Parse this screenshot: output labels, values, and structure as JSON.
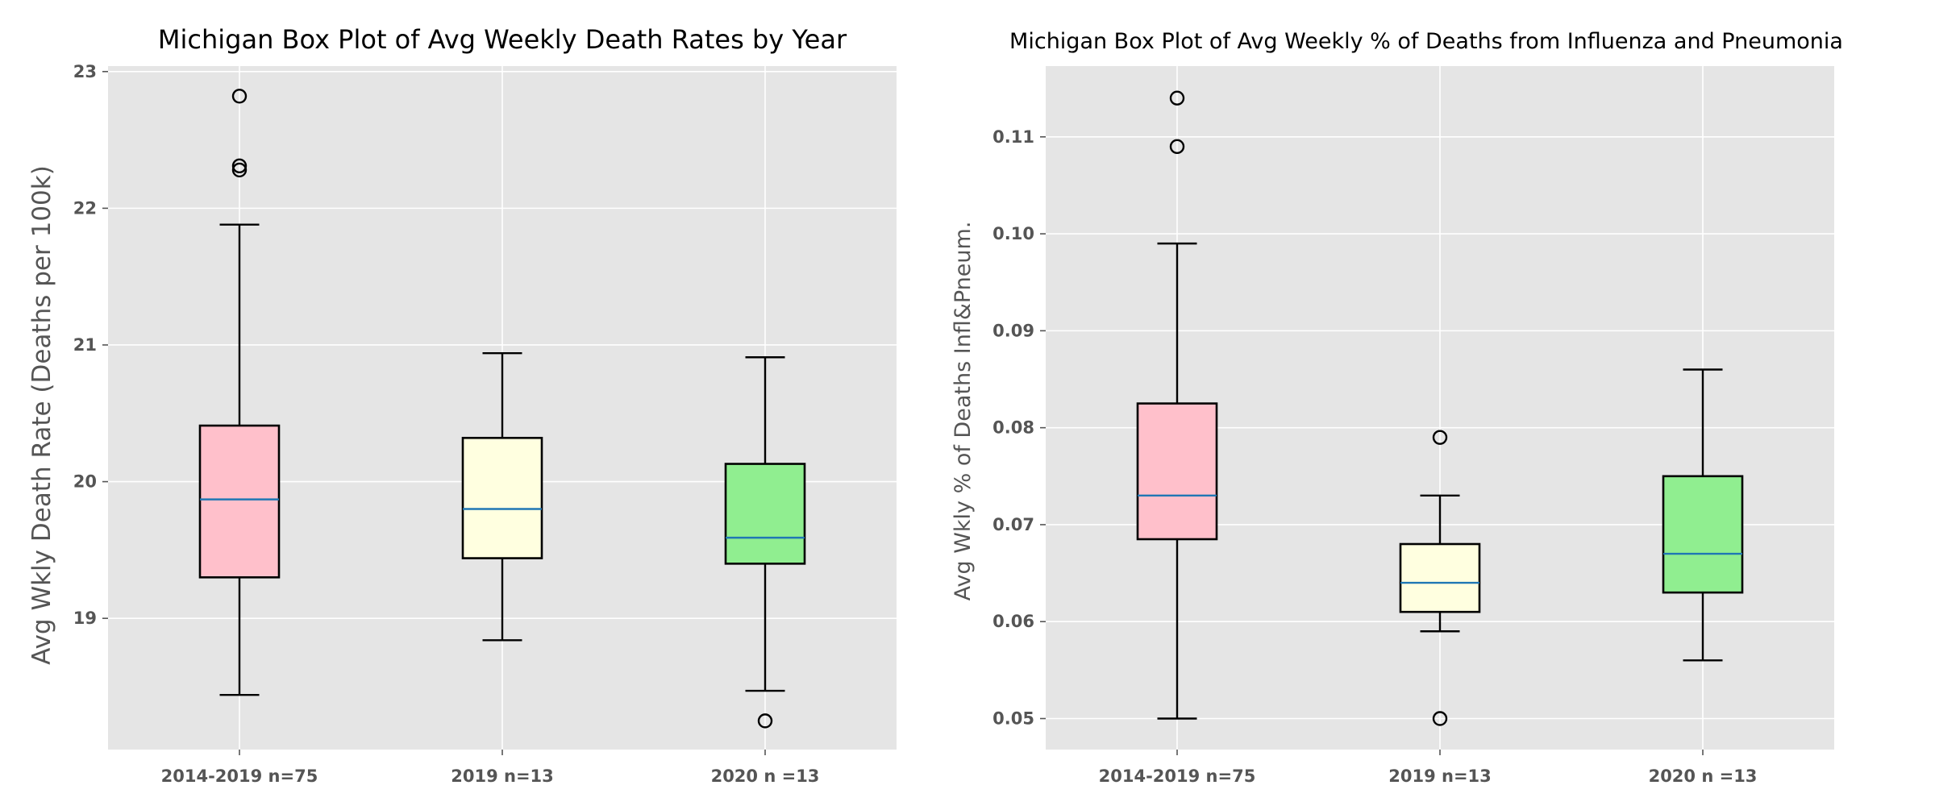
{
  "chart_data": [
    {
      "type": "box",
      "title": "Michigan Box Plot of Avg Weekly Death Rates by Year",
      "xlabel": "",
      "ylabel": "Avg Wkly Death Rate (Deaths per 100k)",
      "categories": [
        "2014-2019 n=75",
        "2019 n=13",
        "2020 n =13"
      ],
      "ylim": [
        18.04,
        23.04
      ],
      "yticks": [
        "19",
        "20",
        "21",
        "22",
        "23"
      ],
      "grid": true,
      "boxes": [
        {
          "category": "2014-2019 n=75",
          "whisker_low": 18.44,
          "q1": 19.3,
          "median": 19.87,
          "q3": 20.41,
          "whisker_high": 21.88,
          "outliers": [
            22.28,
            22.31,
            22.82
          ],
          "color": "#ffc0cb"
        },
        {
          "category": "2019 n=13",
          "whisker_low": 18.84,
          "q1": 19.44,
          "median": 19.8,
          "q3": 20.32,
          "whisker_high": 20.94,
          "outliers": [],
          "color": "#ffffe0"
        },
        {
          "category": "2020 n =13",
          "whisker_low": 18.47,
          "q1": 19.4,
          "median": 19.59,
          "q3": 20.13,
          "whisker_high": 20.91,
          "outliers": [
            18.25
          ],
          "color": "#90ee90"
        }
      ]
    },
    {
      "type": "box",
      "title": "Michigan Box Plot of Avg Weekly % of Deaths from Influenza and Pneumonia",
      "xlabel": "",
      "ylabel": "Avg Wkly % of Deaths Infl&Pneum.",
      "categories": [
        "2014-2019 n=75",
        "2019 n=13",
        "2020 n =13"
      ],
      "ylim": [
        0.0468,
        0.1173
      ],
      "yticks": [
        "0.05",
        "0.06",
        "0.07",
        "0.08",
        "0.09",
        "0.10",
        "0.11"
      ],
      "grid": true,
      "boxes": [
        {
          "category": "2014-2019 n=75",
          "whisker_low": 0.05,
          "q1": 0.0685,
          "median": 0.073,
          "q3": 0.0825,
          "whisker_high": 0.099,
          "outliers": [
            0.109,
            0.114
          ],
          "color": "#ffc0cb"
        },
        {
          "category": "2019 n=13",
          "whisker_low": 0.059,
          "q1": 0.061,
          "median": 0.064,
          "q3": 0.068,
          "whisker_high": 0.073,
          "outliers": [
            0.079,
            0.05
          ],
          "color": "#ffffe0"
        },
        {
          "category": "2020 n =13",
          "whisker_low": 0.056,
          "q1": 0.063,
          "median": 0.067,
          "q3": 0.075,
          "whisker_high": 0.086,
          "outliers": [],
          "color": "#90ee90"
        }
      ]
    }
  ],
  "style": {
    "panel_bg": "#e5e5e5",
    "grid": "#ffffff",
    "box_edge": "#000000",
    "median": "#1f77b4"
  }
}
